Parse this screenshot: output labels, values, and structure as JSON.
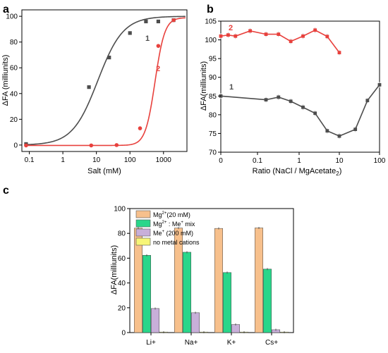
{
  "figure": {
    "panel_labels": [
      "a",
      "b",
      "c"
    ]
  },
  "chart_data": [
    {
      "panel": "a",
      "type": "line",
      "xscale": "log",
      "xlabel": "Salt (mM)",
      "ylabel": "ΔFA (milliunits)",
      "xlim": [
        0.06,
        5000
      ],
      "ylim": [
        -5,
        105
      ],
      "xticks": [
        0.1,
        1,
        10,
        100,
        1000
      ],
      "xtick_labels": [
        "0.1",
        "1",
        "10",
        "100",
        "1000"
      ],
      "yticks": [
        0,
        20,
        40,
        60,
        80,
        100
      ],
      "ytick_labels": [
        "0",
        "20",
        "40",
        "60",
        "80",
        "100"
      ],
      "series": [
        {
          "name": "1",
          "color": "#4d4d4d",
          "points": [
            [
              0.08,
              0.8
            ],
            [
              6,
              45
            ],
            [
              24,
              68
            ],
            [
              100,
              87
            ],
            [
              300,
              96
            ],
            [
              700,
              96
            ],
            [
              2000,
              97
            ]
          ],
          "curve": {
            "bottom": 0,
            "top": 100,
            "ec50": 11,
            "hill": 1.15,
            "xmin": 0.08,
            "xmax": 4500
          }
        },
        {
          "name": "2",
          "color": "#e8413d",
          "points": [
            [
              0.08,
              -0.3
            ],
            [
              7,
              -0.3
            ],
            [
              40,
              0
            ],
            [
              200,
              13
            ],
            [
              700,
              77
            ],
            [
              2000,
              97
            ]
          ],
          "curve": {
            "bottom": -0.3,
            "top": 99,
            "ec50": 560,
            "hill": 3.0,
            "xmin": 0.08,
            "xmax": 4500
          }
        }
      ]
    },
    {
      "panel": "b",
      "type": "line",
      "xscale": "symlog",
      "xlabel": "Ratio (NaCl / MgAcetate",
      "xlabel_sub": "2",
      "xlabel_tail": ")",
      "ylabel": "ΔFA(milliunits)",
      "xlim": [
        0,
        100
      ],
      "ylim": [
        70,
        105
      ],
      "xticks": [
        0,
        0.1,
        1,
        10,
        100
      ],
      "xtick_labels": [
        "0",
        "0.1",
        "1",
        "10",
        "100"
      ],
      "yticks": [
        70,
        75,
        80,
        85,
        90,
        95,
        100,
        105
      ],
      "ytick_labels": [
        "70",
        "75",
        "80",
        "85",
        "90",
        "95",
        "100",
        "105"
      ],
      "series": [
        {
          "name": "2",
          "color": "#e8413d",
          "points": [
            [
              0,
              101
            ],
            [
              0.02,
              101.3
            ],
            [
              0.04,
              101
            ],
            [
              0.08,
              102.4
            ],
            [
              0.16,
              101.5
            ],
            [
              0.32,
              101.5
            ],
            [
              0.63,
              99.6
            ],
            [
              1.25,
              101
            ],
            [
              2.5,
              102.6
            ],
            [
              5,
              100.9
            ],
            [
              10,
              96.6
            ]
          ]
        },
        {
          "name": "1",
          "color": "#4d4d4d",
          "points": [
            [
              0,
              85
            ],
            [
              0.16,
              84
            ],
            [
              0.32,
              84.7
            ],
            [
              0.63,
              83.6
            ],
            [
              1.25,
              82
            ],
            [
              2.5,
              80.4
            ],
            [
              5,
              75.7
            ],
            [
              10,
              74.3
            ],
            [
              25,
              76.1
            ],
            [
              50,
              83.8
            ],
            [
              100,
              88
            ]
          ]
        }
      ]
    },
    {
      "panel": "c",
      "type": "bar",
      "ylabel": "ΔFA(milliunits)",
      "ylim": [
        0,
        100
      ],
      "yticks": [
        0,
        20,
        40,
        60,
        80,
        100
      ],
      "ytick_labels": [
        "0",
        "20",
        "40",
        "60",
        "80",
        "100"
      ],
      "categories": [
        "Li+",
        "Na+",
        "K+",
        "Cs+"
      ],
      "legend": {
        "position": "top",
        "entries": [
          {
            "label": "Mg",
            "sup": "2+",
            "tail": "(20 mM)"
          },
          {
            "label": "Mg",
            "sup": "2+",
            "tail": " : Me",
            "sup2": "+",
            "tail2": " mix"
          },
          {
            "label": "Me",
            "sup": "+",
            "tail": " (200 mM)"
          },
          {
            "label": "no metal cations"
          }
        ]
      },
      "series": [
        {
          "color": "#f7c08c",
          "values": [
            84.2,
            84.3,
            84.0,
            84.4
          ]
        },
        {
          "color": "#29d68a",
          "values": [
            62.3,
            64.8,
            48.4,
            51.2
          ]
        },
        {
          "color": "#c8afd9",
          "values": [
            19.4,
            16.0,
            6.5,
            2.3
          ]
        },
        {
          "color": "#f7f576",
          "values": [
            0.3,
            0.3,
            0.3,
            0.3
          ]
        }
      ]
    }
  ]
}
